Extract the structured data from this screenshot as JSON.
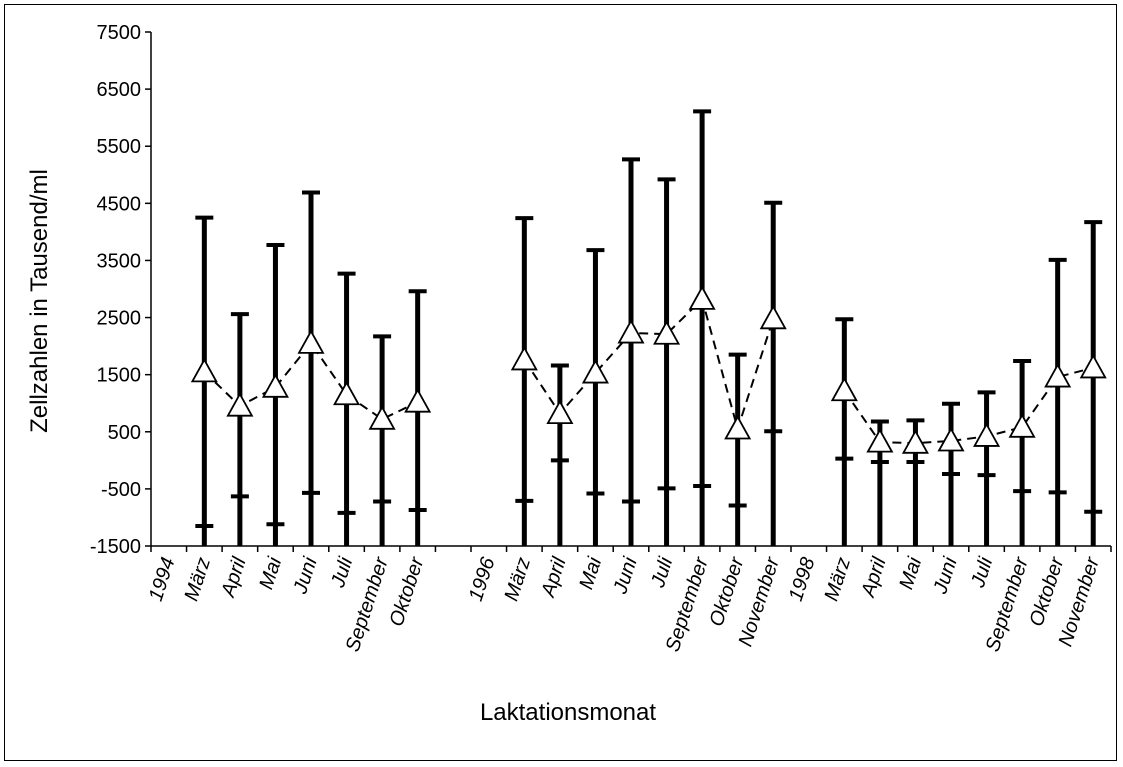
{
  "chart_data": {
    "type": "line",
    "title": "",
    "xlabel": "Laktationsmonat",
    "ylabel": "Zellzahlen in Tausend/ml",
    "ylim": [
      -1500,
      7500
    ],
    "yticks": [
      7500,
      6500,
      5500,
      4500,
      3500,
      2500,
      1500,
      500,
      -500,
      -1500
    ],
    "grid": false,
    "legend": "none",
    "categories": [
      "1994",
      "März",
      "April",
      "Mai",
      "Juni",
      "Juli",
      "September",
      "Oktober",
      "",
      "1996",
      "März",
      "April",
      "Mai",
      "Juni",
      "Juli",
      "September",
      "Oktober",
      "November",
      "1998",
      "März",
      "April",
      "Mai",
      "Juni",
      "Juli",
      "September",
      "Oktober",
      "November"
    ],
    "series": [
      {
        "marker": "triangle",
        "line_style": "dashed",
        "values": [
          null,
          1550,
          950,
          1280,
          2050,
          1150,
          720,
          1020,
          null,
          null,
          1760,
          820,
          1530,
          2230,
          2210,
          2820,
          550,
          2480,
          null,
          1220,
          320,
          300,
          340,
          420,
          580,
          1460,
          1620
        ],
        "error_upper": [
          null,
          4250,
          2560,
          3770,
          4690,
          3270,
          2170,
          2960,
          null,
          null,
          4240,
          1660,
          3680,
          5270,
          4920,
          6110,
          1850,
          4510,
          null,
          2470,
          680,
          700,
          990,
          1190,
          1740,
          3510,
          4170
        ],
        "error_lower": [
          null,
          -1150,
          -630,
          -1120,
          -570,
          -920,
          -720,
          -870,
          null,
          null,
          -710,
          0,
          -580,
          -720,
          -490,
          -450,
          -790,
          510,
          null,
          30,
          -30,
          -30,
          -240,
          -260,
          -540,
          -560,
          -900
        ]
      }
    ]
  }
}
